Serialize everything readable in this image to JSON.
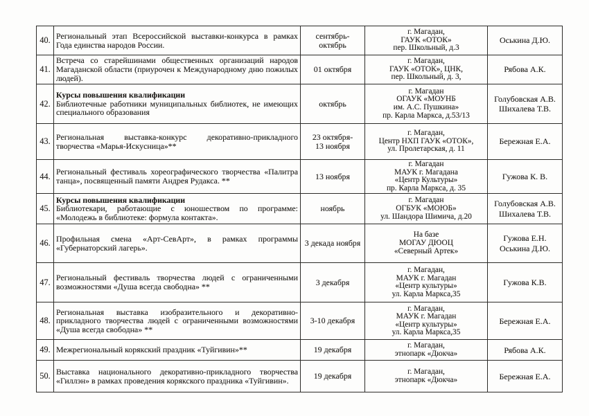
{
  "document": {
    "paper_color": "#fdfdfc",
    "text_color": "#211f1c",
    "border_color": "#2b2a27"
  },
  "table": {
    "columns": [
      "number",
      "event",
      "date",
      "location",
      "responsible"
    ],
    "rows": [
      {
        "num": "40.",
        "title": "",
        "desc": "Региональный этап Всероссийской выставки-конкурса в рамках Года единства народов России.",
        "date": [
          "сентябрь-",
          "октябрь"
        ],
        "place": [
          "г. Магадан,",
          "ГАУК «ОТОК»",
          "пер. Школьный, д.3"
        ],
        "person": [
          "Оськина Д.Ю."
        ]
      },
      {
        "num": "41.",
        "title": "",
        "desc": "Встреча со старейшинами общественных организаций народов Магаданской области (приурочен к Международному дню пожилых людей).",
        "date": [
          "01 октября"
        ],
        "place": [
          "г. Магадан,",
          "ГАУК «ОТОК», ЦНК,",
          "пер. Школьный, д. 3,"
        ],
        "person": [
          "Рябова А.К."
        ]
      },
      {
        "num": "42.",
        "title": "Курсы повышения квалификации",
        "desc": "Библиотечные работники муниципальных библиотек, не имеющих специального образования",
        "date": [
          "октябрь"
        ],
        "place": [
          "г. Магадан",
          "ОГАУК «МОУНБ",
          "им. А.С. Пушкина»",
          "пр. Карла Маркса, д.53/13"
        ],
        "person": [
          "Голубовская А.В.",
          "Шихалева Т.В."
        ]
      },
      {
        "num": "43.",
        "title": "",
        "desc": "Региональная выставка-конкурс декоративно-прикладного творчества «Марья-Искусница»**",
        "date": [
          "23 октября-",
          "13 ноября"
        ],
        "place": [
          "г. Магадан,",
          "Центр НХП ГАУК «ОТОК»,",
          "ул. Пролетарская, д. 11"
        ],
        "person": [
          "Бережная Е.А."
        ]
      },
      {
        "num": "44.",
        "title": "",
        "desc": "Региональный фестиваль хореографического творчества «Палитра танца», посвященный памяти Андрея Рудакса. **",
        "date": [
          "13 ноября"
        ],
        "place": [
          "г. Магадан",
          "МАУК г. Магадана",
          "«Центр Культуры»",
          "пр. Карла Маркса, д. 35"
        ],
        "person": [
          "Гужова К. В."
        ]
      },
      {
        "num": "45.",
        "title": "Курсы повышения квалификации",
        "desc": "Библиотекари, работающие с юношеством по программе: «Молодежь в библиотеке: формула контакта».",
        "date": [
          "ноябрь"
        ],
        "place": [
          "г. Магадан",
          "ОГБУК «МОЮБ»",
          "ул. Шандора Шимича, д.20"
        ],
        "person": [
          "Голубовская А.В.",
          "Шихалева Т.В."
        ]
      },
      {
        "num": "46.",
        "title": "",
        "desc": "Профильная смена «Арт-СевАрт», в рамках программы «Губернаторский лагерь».",
        "date": [
          "3 декада ноября"
        ],
        "place": [
          "На базе",
          "МОГАУ ДЮОЦ",
          "«Северный Артек»"
        ],
        "person": [
          "Гужова Е.Н.",
          "Оськина Д.Ю."
        ]
      },
      {
        "num": "47.",
        "title": "",
        "desc": "Региональный фестиваль творчества людей с ограниченными возможностями «Душа всегда свободна» **",
        "date": [
          "3 декабря"
        ],
        "place": [
          "г. Магадан,",
          "МАУК г. Магадан",
          "«Центр культуры»",
          "ул. Карла Маркса,35"
        ],
        "person": [
          "Гужова К.В."
        ]
      },
      {
        "num": "48.",
        "title": "",
        "desc": "Региональная выставка изобразительного и декоративно-прикладного творчества людей с ограниченными возможностями «Душа всегда свободна» **",
        "date": [
          "3-10 декабря"
        ],
        "place": [
          "г. Магадан,",
          "МАУК г. Магадан",
          "«Центр культуры»",
          "ул. Карла Маркса,35"
        ],
        "person": [
          "Бережная Е.А."
        ]
      },
      {
        "num": "49.",
        "title": "",
        "desc": "Межрегиональный корякский праздник «Туйгивин»**",
        "date": [
          "19 декабря"
        ],
        "place": [
          "г. Магадан,",
          "этнопарк «Дюкча»"
        ],
        "person": [
          "Рябова А.К."
        ]
      },
      {
        "num": "50.",
        "title": "",
        "desc": "Выставка национального декоративно-прикладного творчества «Гиллэн» в рамках проведения корякского праздника «Туйгивин».",
        "date": [
          "19 декабря"
        ],
        "place": [
          "г. Магадан,",
          "этнопарк «Дюкча»"
        ],
        "person": [
          "Бережная Е.А."
        ]
      }
    ]
  }
}
